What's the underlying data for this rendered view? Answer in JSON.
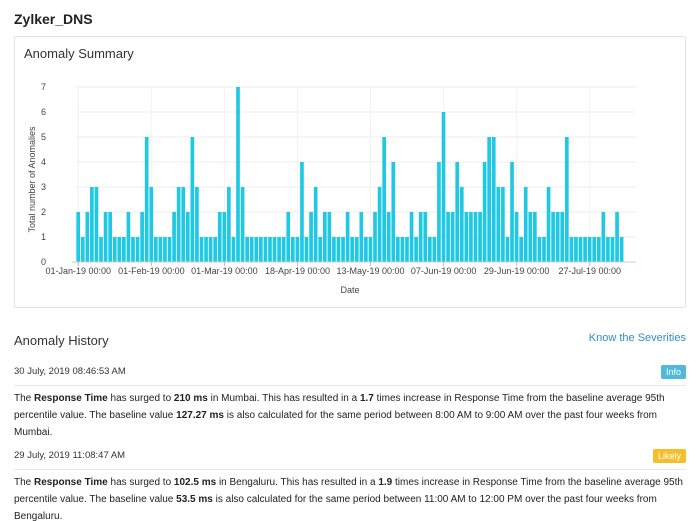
{
  "app": {
    "title": "Zylker_DNS"
  },
  "summary": {
    "title": "Anomaly Summary"
  },
  "history": {
    "title": "Anomaly History",
    "link": "Know the Severities",
    "entries": [
      {
        "time": "30 July, 2019 08:46:53 AM",
        "severity": "Info",
        "parts": {
          "t1": "The ",
          "metric": "Response Time",
          "t2": " has surged to ",
          "value": "210 ms",
          "t3": " in Mumbai. This has resulted in a ",
          "factor": "1.7",
          "t4": " times increase in Response Time from the baseline average 95th percentile value. The baseline value ",
          "baseline": "127.27 ms",
          "t5": " is also calculated for the same period between 8:00 AM to 9:00 AM over the past four weeks from Mumbai."
        }
      },
      {
        "time": "29 July, 2019 11:08:47 AM",
        "severity": "Likely",
        "parts": {
          "t1": "The ",
          "metric": "Response Time",
          "t2": " has surged to ",
          "value": "102.5 ms",
          "t3": " in Bengaluru. This has resulted in a ",
          "factor": "1.9",
          "t4": " times increase in Response Time from the baseline average 95th percentile value. The baseline value ",
          "baseline": "53.5 ms",
          "t5": " is also calculated for the same period between 11:00 AM to 12:00 PM over the past four weeks from Bengaluru."
        }
      }
    ]
  },
  "chart_data": {
    "type": "bar",
    "xlabel": "Date",
    "ylabel": "Total number of Anomalies",
    "ylim": [
      0,
      7
    ],
    "yticks": [
      0,
      1,
      2,
      3,
      4,
      5,
      6,
      7
    ],
    "xtick_labels": [
      "01-Jan-19 00:00",
      "01-Feb-19 00:00",
      "01-Mar-19 00:00",
      "18-Apr-19 00:00",
      "13-May-19 00:00",
      "07-Jun-19 00:00",
      "29-Jun-19 00:00",
      "27-Jul-19 00:00"
    ],
    "xtick_bar_index": [
      0,
      16,
      32,
      48,
      64,
      80,
      96,
      112
    ],
    "color": "#1fc8e3",
    "grid": true,
    "values": [
      2,
      1,
      2,
      3,
      3,
      1,
      2,
      2,
      1,
      1,
      1,
      2,
      1,
      1,
      2,
      5,
      3,
      1,
      1,
      1,
      1,
      2,
      3,
      3,
      2,
      5,
      3,
      1,
      1,
      1,
      1,
      2,
      2,
      3,
      1,
      7,
      3,
      1,
      1,
      1,
      1,
      1,
      1,
      1,
      1,
      1,
      2,
      1,
      1,
      4,
      1,
      2,
      3,
      1,
      2,
      2,
      1,
      1,
      1,
      2,
      1,
      1,
      2,
      1,
      1,
      2,
      3,
      5,
      2,
      4,
      1,
      1,
      1,
      2,
      1,
      2,
      2,
      1,
      1,
      4,
      6,
      2,
      2,
      4,
      3,
      2,
      2,
      2,
      2,
      4,
      5,
      5,
      3,
      3,
      1,
      4,
      2,
      1,
      3,
      2,
      2,
      1,
      1,
      3,
      2,
      2,
      2,
      5,
      1,
      1,
      1,
      1,
      1,
      1,
      1,
      2,
      1,
      1,
      2,
      1
    ]
  }
}
